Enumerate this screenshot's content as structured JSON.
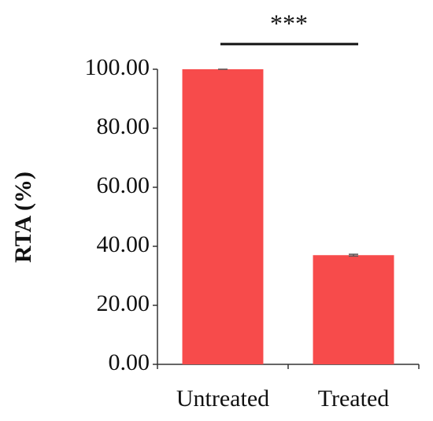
{
  "chart_data": {
    "type": "bar",
    "y_label": "RTA (%)",
    "annotation": "***",
    "categories": [
      "Untreated",
      "Treated"
    ],
    "values": [
      100,
      37
    ],
    "errors": [
      0,
      0.3
    ],
    "color": "#f74b4b",
    "ylim": [
      0,
      100
    ],
    "yticks": [
      {
        "value": 0,
        "label": "0.00"
      },
      {
        "value": 20,
        "label": "20.00"
      },
      {
        "value": 40,
        "label": "40.00"
      },
      {
        "value": 60,
        "label": "60.00"
      },
      {
        "value": 80,
        "label": "80.00"
      },
      {
        "value": 100,
        "label": "100.00"
      }
    ]
  }
}
